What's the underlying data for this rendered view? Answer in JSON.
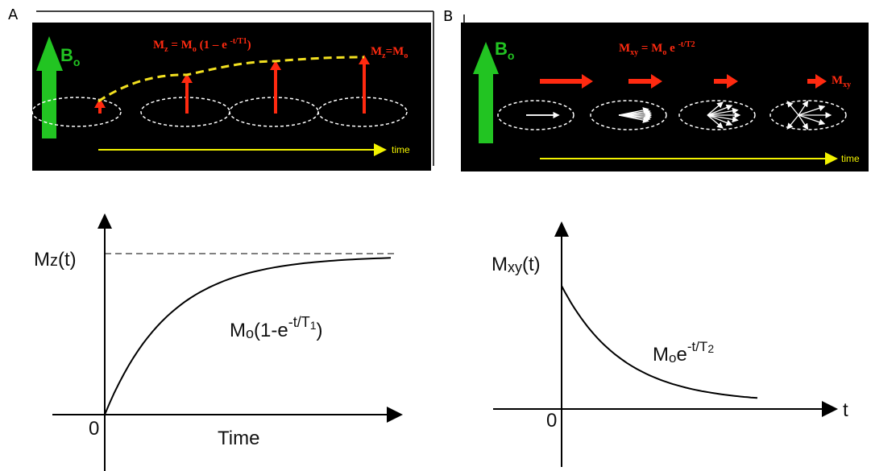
{
  "panel_a": {
    "label": "A",
    "field": [
      "B",
      "o"
    ],
    "equation": [
      "M",
      "z",
      " = M",
      "o",
      " (1 – e ",
      "-t/T1",
      ")"
    ],
    "end_label": [
      "M",
      "z",
      "=M",
      "o"
    ],
    "axis_label": "time"
  },
  "panel_b": {
    "label": "B",
    "field": [
      "B",
      "o"
    ],
    "equation": [
      "M",
      "xy",
      " = M",
      "o",
      " e ",
      "-t/T2"
    ],
    "end_label": [
      "M",
      "xy"
    ],
    "axis_label": "time"
  },
  "graph_t1": {
    "y_label": [
      "M",
      "z",
      "(t)"
    ],
    "formula": [
      "M",
      "o",
      "(1-e",
      "-t/T",
      "1",
      ")"
    ],
    "origin": "0",
    "x_label": "Time"
  },
  "graph_t2": {
    "y_label": [
      "M",
      "xy",
      "(t)"
    ],
    "formula": [
      "M",
      "o",
      "e",
      "-t/T",
      "2"
    ],
    "origin": "0",
    "x_label": "t"
  }
}
